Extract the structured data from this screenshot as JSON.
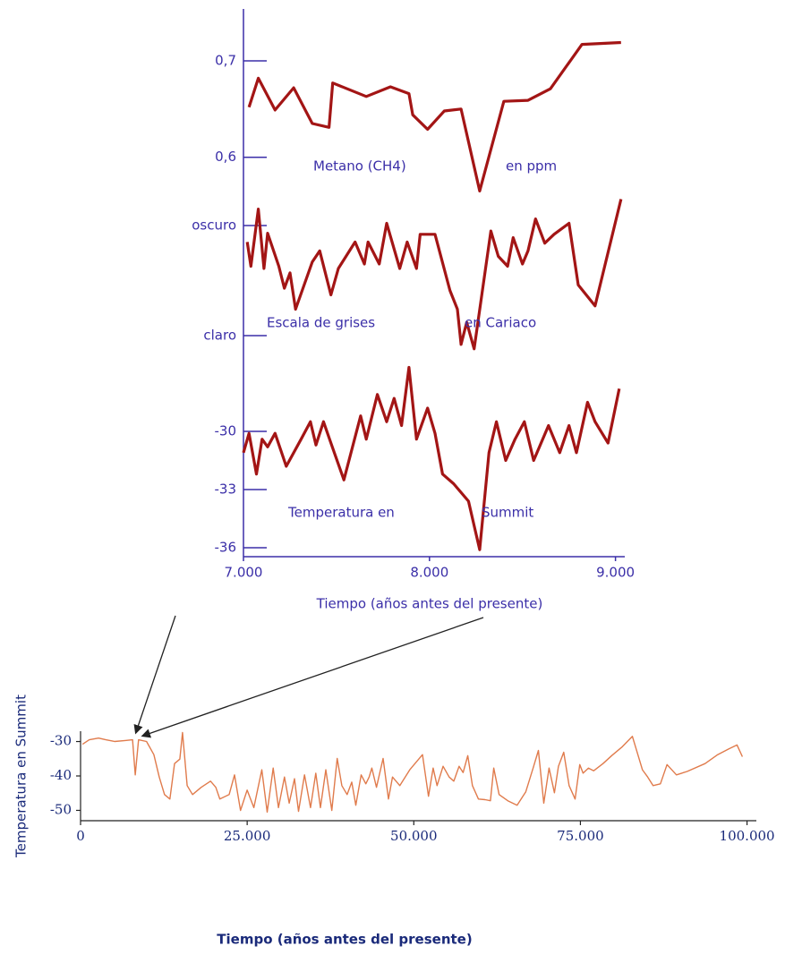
{
  "chart_data": [
    {
      "type": "line",
      "xlabel": "Tiempo (años antes del presente)",
      "xlim": [
        7000,
        9050
      ],
      "xticks": [
        {
          "value": 7000,
          "label": "7.000"
        },
        {
          "value": 8000,
          "label": "8.000"
        },
        {
          "value": 9000,
          "label": "9.000"
        }
      ],
      "panels": [
        {
          "labels": [
            "Metano (CH4)",
            "en ppm"
          ],
          "color": "#a31515",
          "ylim": [
            0.55,
            0.72
          ],
          "yticks": [
            {
              "value": 0.7,
              "label": "0,7"
            },
            {
              "value": 0.6,
              "label": "0,6"
            }
          ],
          "x": [
            7030,
            7080,
            7170,
            7270,
            7370,
            7460,
            7480,
            7660,
            7790,
            7890,
            7910,
            7990,
            8080,
            8170,
            8270,
            8400,
            8530,
            8650,
            8820,
            9030
          ],
          "values": [
            0.652,
            0.682,
            0.649,
            0.672,
            0.635,
            0.631,
            0.677,
            0.663,
            0.673,
            0.666,
            0.644,
            0.629,
            0.648,
            0.65,
            0.565,
            0.658,
            0.659,
            0.671,
            0.717,
            0.719
          ]
        },
        {
          "labels": [
            "Escala de grises",
            "en Cariaco"
          ],
          "color": "#a31515",
          "ylim": [
            -0.2,
            1.3
          ],
          "yticks": [
            {
              "value": 1,
              "label": "oscuro"
            },
            {
              "value": 0,
              "label": "claro"
            }
          ],
          "x": [
            7020,
            7040,
            7080,
            7110,
            7130,
            7190,
            7220,
            7250,
            7280,
            7370,
            7410,
            7470,
            7510,
            7600,
            7650,
            7670,
            7730,
            7770,
            7840,
            7880,
            7930,
            7950,
            8030,
            8110,
            8150,
            8170,
            8200,
            8240,
            8330,
            8370,
            8420,
            8450,
            8500,
            8530,
            8570,
            8620,
            8670,
            8750,
            8800,
            8890,
            9030
          ],
          "values": [
            0.85,
            0.63,
            1.15,
            0.61,
            0.93,
            0.63,
            0.43,
            0.57,
            0.24,
            0.67,
            0.77,
            0.37,
            0.61,
            0.85,
            0.65,
            0.85,
            0.65,
            1.02,
            0.61,
            0.85,
            0.61,
            0.92,
            0.92,
            0.41,
            0.24,
            -0.08,
            0.12,
            -0.12,
            0.95,
            0.72,
            0.63,
            0.89,
            0.65,
            0.77,
            1.06,
            0.84,
            0.92,
            1.02,
            0.46,
            0.27,
            1.24
          ]
        },
        {
          "labels": [
            "Temperatura en",
            "Summit"
          ],
          "color": "#a31515",
          "ylim": [
            -36.4,
            -26
          ],
          "yticks": [
            -30,
            -33,
            -36
          ],
          "x": [
            7000,
            7030,
            7070,
            7100,
            7130,
            7170,
            7230,
            7310,
            7360,
            7390,
            7430,
            7470,
            7540,
            7630,
            7660,
            7720,
            7770,
            7810,
            7850,
            7890,
            7930,
            7990,
            8030,
            8070,
            8130,
            8210,
            8270,
            8320,
            8360,
            8410,
            8460,
            8510,
            8560,
            8640,
            8700,
            8750,
            8790,
            8850,
            8890,
            8960,
            9020
          ],
          "values": [
            -31.1,
            -30.1,
            -32.2,
            -30.4,
            -30.8,
            -30.1,
            -31.8,
            -30.4,
            -29.5,
            -30.7,
            -29.5,
            -30.6,
            -32.5,
            -29.2,
            -30.4,
            -28.1,
            -29.5,
            -28.3,
            -29.7,
            -26.7,
            -30.4,
            -28.8,
            -30.1,
            -32.2,
            -32.7,
            -33.6,
            -36.1,
            -31.1,
            -29.5,
            -31.5,
            -30.4,
            -29.5,
            -31.5,
            -29.7,
            -31.1,
            -29.7,
            -31.1,
            -28.5,
            -29.5,
            -30.6,
            -27.8
          ]
        }
      ]
    },
    {
      "type": "line",
      "xlabel": "Tiempo (años antes del presente)",
      "ylabel": "Temperatura en  Summit",
      "color": "#e07b4c",
      "xlim": [
        0,
        101400
      ],
      "ylim": [
        -53,
        -27
      ],
      "xticks": [
        0,
        {
          "value": 25000,
          "label": "25.000"
        },
        {
          "value": 50000,
          "label": "50.000"
        },
        {
          "value": 75000,
          "label": "75.000"
        },
        {
          "value": 100000,
          "label": "100.000"
        }
      ],
      "yticks": [
        -30,
        -40,
        -50
      ],
      "x": [
        300,
        1300,
        2700,
        3800,
        5100,
        6700,
        7800,
        8200,
        8700,
        9900,
        11000,
        11800,
        12600,
        13400,
        14100,
        14900,
        15300,
        16000,
        16800,
        18100,
        19500,
        20300,
        20900,
        22300,
        23100,
        24000,
        25000,
        26000,
        27200,
        28000,
        28900,
        29700,
        30600,
        31300,
        32100,
        32700,
        33600,
        34500,
        35300,
        36000,
        36800,
        37700,
        38500,
        39200,
        40000,
        40700,
        41300,
        42100,
        42800,
        43300,
        43700,
        44400,
        45400,
        46200,
        46800,
        47900,
        49400,
        51300,
        52200,
        52900,
        53500,
        54400,
        55300,
        56000,
        56800,
        57400,
        58100,
        58800,
        59700,
        60700,
        61500,
        62000,
        62800,
        64100,
        65500,
        66800,
        67900,
        68700,
        69500,
        70300,
        71100,
        71700,
        72500,
        73300,
        74200,
        74900,
        75400,
        76200,
        77000,
        78400,
        79700,
        81300,
        82800,
        84300,
        85100,
        85900,
        87000,
        88000,
        89400,
        91000,
        93700,
        95600,
        97300,
        98500,
        99300
      ],
      "values": [
        -30.8,
        -29.5,
        -29.0,
        -29.5,
        -30.0,
        -29.7,
        -29.5,
        -39.7,
        -29.5,
        -30.0,
        -33.8,
        -40.3,
        -45.4,
        -46.7,
        -36.4,
        -35.1,
        -27.4,
        -42.8,
        -45.4,
        -43.3,
        -41.5,
        -43.3,
        -46.7,
        -45.4,
        -39.7,
        -50.0,
        -44.1,
        -49.2,
        -38.2,
        -50.5,
        -37.7,
        -49.2,
        -40.3,
        -47.9,
        -40.8,
        -50.3,
        -39.7,
        -49.2,
        -39.2,
        -49.2,
        -38.2,
        -50.0,
        -34.9,
        -42.8,
        -45.4,
        -41.8,
        -48.5,
        -39.7,
        -42.3,
        -40.3,
        -37.7,
        -43.3,
        -34.9,
        -46.7,
        -40.3,
        -42.8,
        -38.2,
        -33.8,
        -45.9,
        -37.7,
        -42.8,
        -37.2,
        -40.3,
        -41.5,
        -37.2,
        -39.0,
        -34.1,
        -42.8,
        -46.7,
        -46.9,
        -47.2,
        -37.7,
        -45.4,
        -47.2,
        -48.5,
        -44.6,
        -37.7,
        -32.6,
        -47.9,
        -37.7,
        -44.9,
        -37.2,
        -33.1,
        -42.8,
        -46.7,
        -36.7,
        -39.2,
        -37.7,
        -38.5,
        -36.4,
        -34.1,
        -31.5,
        -28.5,
        -38.2,
        -40.3,
        -42.8,
        -42.3,
        -36.7,
        -39.7,
        -38.7,
        -36.4,
        -33.8,
        -32.1,
        -31.0,
        -34.4
      ]
    }
  ]
}
